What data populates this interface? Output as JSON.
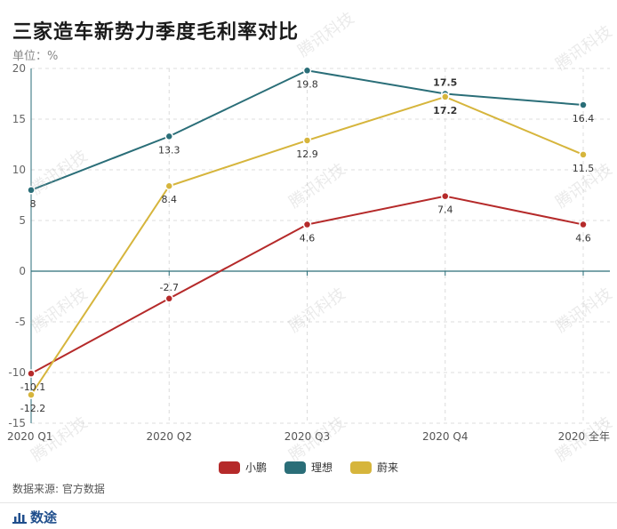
{
  "header": {
    "title": "三家造车新势力季度毛利率对比",
    "unit": "单位：%"
  },
  "footer": {
    "source": "数据来源: 官方数据",
    "brand": "数途"
  },
  "watermark": "腾讯科技",
  "colors": {
    "xiaopeng": "#b52a2a",
    "lixiang": "#2a6e78",
    "weilai": "#d6b53c",
    "axis": "#2a6e78",
    "grid": "#dcdcdc"
  },
  "chart_data": {
    "type": "line",
    "categories": [
      "2020 Q1",
      "2020 Q2",
      "2020 Q3",
      "2020 Q4",
      "2020 全年"
    ],
    "ylim": [
      -15,
      20
    ],
    "yticks": [
      -15,
      -10,
      -5,
      0,
      5,
      10,
      15,
      20
    ],
    "grid": true,
    "legend_position": "bottom",
    "series": [
      {
        "name": "小鹏",
        "color": "#b52a2a",
        "values": [
          -10.1,
          -2.7,
          4.6,
          7.4,
          4.6
        ],
        "labels": [
          "-10.1",
          "-2.7",
          "4.6",
          "7.4",
          "4.6"
        ]
      },
      {
        "name": "理想",
        "color": "#2a6e78",
        "values": [
          8,
          13.3,
          19.8,
          17.5,
          16.4
        ],
        "labels": [
          "8",
          "13.3",
          "19.8",
          "17.5",
          "16.4"
        ]
      },
      {
        "name": "蔚来",
        "color": "#d6b53c",
        "values": [
          -12.2,
          8.4,
          12.9,
          17.2,
          11.5
        ],
        "labels": [
          "-12.2",
          "8.4",
          "12.9",
          "17.2",
          "11.5"
        ]
      }
    ]
  }
}
